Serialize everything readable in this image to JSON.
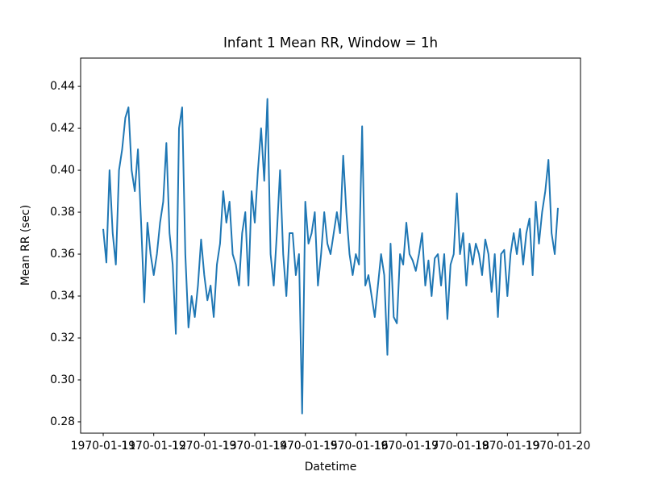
{
  "chart_data": {
    "type": "line",
    "title": "Infant 1 Mean RR, Window = 1h",
    "xlabel": "Datetime",
    "ylabel": "Mean RR (sec)",
    "x": [
      "1970-01-11 00:00",
      "1970-01-11 01:30",
      "1970-01-11 03:00",
      "1970-01-11 04:30",
      "1970-01-11 06:00",
      "1970-01-11 07:30",
      "1970-01-11 09:00",
      "1970-01-11 10:30",
      "1970-01-11 12:00",
      "1970-01-11 13:30",
      "1970-01-11 15:00",
      "1970-01-11 16:30",
      "1970-01-11 18:00",
      "1970-01-11 19:30",
      "1970-01-11 21:00",
      "1970-01-11 22:30",
      "1970-01-12 00:00",
      "1970-01-12 01:30",
      "1970-01-12 03:00",
      "1970-01-12 04:30",
      "1970-01-12 06:00",
      "1970-01-12 07:30",
      "1970-01-12 09:00",
      "1970-01-12 10:30",
      "1970-01-12 12:00",
      "1970-01-12 13:30",
      "1970-01-12 15:00",
      "1970-01-12 16:30",
      "1970-01-12 18:00",
      "1970-01-12 19:30",
      "1970-01-12 21:00",
      "1970-01-12 22:30",
      "1970-01-13 00:00",
      "1970-01-13 01:30",
      "1970-01-13 03:00",
      "1970-01-13 04:30",
      "1970-01-13 06:00",
      "1970-01-13 07:30",
      "1970-01-13 09:00",
      "1970-01-13 10:30",
      "1970-01-13 12:00",
      "1970-01-13 13:30",
      "1970-01-13 15:00",
      "1970-01-13 16:30",
      "1970-01-13 18:00",
      "1970-01-13 19:30",
      "1970-01-13 21:00",
      "1970-01-13 22:30",
      "1970-01-14 00:00",
      "1970-01-14 01:30",
      "1970-01-14 03:00",
      "1970-01-14 04:30",
      "1970-01-14 06:00",
      "1970-01-14 07:30",
      "1970-01-14 09:00",
      "1970-01-14 10:30",
      "1970-01-14 12:00",
      "1970-01-14 13:30",
      "1970-01-14 15:00",
      "1970-01-14 16:30",
      "1970-01-14 18:00",
      "1970-01-14 19:30",
      "1970-01-14 21:00",
      "1970-01-14 22:30",
      "1970-01-15 00:00",
      "1970-01-15 01:30",
      "1970-01-15 03:00",
      "1970-01-15 04:30",
      "1970-01-15 06:00",
      "1970-01-15 07:30",
      "1970-01-15 09:00",
      "1970-01-15 10:30",
      "1970-01-15 12:00",
      "1970-01-15 13:30",
      "1970-01-15 15:00",
      "1970-01-15 16:30",
      "1970-01-15 18:00",
      "1970-01-15 19:30",
      "1970-01-15 21:00",
      "1970-01-15 22:30",
      "1970-01-16 00:00",
      "1970-01-16 01:30",
      "1970-01-16 03:00",
      "1970-01-16 04:30",
      "1970-01-16 06:00",
      "1970-01-16 07:30",
      "1970-01-16 09:00",
      "1970-01-16 10:30",
      "1970-01-16 12:00",
      "1970-01-16 13:30",
      "1970-01-16 15:00",
      "1970-01-16 16:30",
      "1970-01-16 18:00",
      "1970-01-16 19:30",
      "1970-01-16 21:00",
      "1970-01-16 22:30",
      "1970-01-17 00:00",
      "1970-01-17 01:30",
      "1970-01-17 03:00",
      "1970-01-17 04:30",
      "1970-01-17 06:00",
      "1970-01-17 07:30",
      "1970-01-17 09:00",
      "1970-01-17 10:30",
      "1970-01-17 12:00",
      "1970-01-17 13:30",
      "1970-01-17 15:00",
      "1970-01-17 16:30",
      "1970-01-17 18:00",
      "1970-01-17 19:30",
      "1970-01-17 21:00",
      "1970-01-17 22:30",
      "1970-01-18 00:00",
      "1970-01-18 01:30",
      "1970-01-18 03:00",
      "1970-01-18 04:30",
      "1970-01-18 06:00",
      "1970-01-18 07:30",
      "1970-01-18 09:00",
      "1970-01-18 10:30",
      "1970-01-18 12:00",
      "1970-01-18 13:30",
      "1970-01-18 15:00",
      "1970-01-18 16:30",
      "1970-01-18 18:00",
      "1970-01-18 19:30",
      "1970-01-18 21:00",
      "1970-01-18 22:30",
      "1970-01-19 00:00",
      "1970-01-19 01:30",
      "1970-01-19 03:00",
      "1970-01-19 04:30",
      "1970-01-19 06:00",
      "1970-01-19 07:30",
      "1970-01-19 09:00",
      "1970-01-19 10:30",
      "1970-01-19 12:00",
      "1970-01-19 13:30",
      "1970-01-19 15:00",
      "1970-01-19 16:30",
      "1970-01-19 18:00",
      "1970-01-19 19:30",
      "1970-01-19 21:00",
      "1970-01-19 22:30",
      "1970-01-20 00:00"
    ],
    "values": [
      0.372,
      0.356,
      0.4,
      0.37,
      0.355,
      0.4,
      0.41,
      0.425,
      0.43,
      0.4,
      0.39,
      0.41,
      0.375,
      0.337,
      0.375,
      0.36,
      0.35,
      0.36,
      0.375,
      0.385,
      0.413,
      0.37,
      0.355,
      0.322,
      0.42,
      0.43,
      0.36,
      0.325,
      0.34,
      0.33,
      0.345,
      0.367,
      0.35,
      0.338,
      0.345,
      0.33,
      0.355,
      0.365,
      0.39,
      0.375,
      0.385,
      0.36,
      0.355,
      0.345,
      0.37,
      0.38,
      0.345,
      0.39,
      0.375,
      0.4,
      0.42,
      0.395,
      0.434,
      0.36,
      0.345,
      0.37,
      0.4,
      0.36,
      0.34,
      0.37,
      0.37,
      0.35,
      0.36,
      0.284,
      0.385,
      0.365,
      0.37,
      0.38,
      0.345,
      0.36,
      0.38,
      0.365,
      0.36,
      0.37,
      0.38,
      0.37,
      0.407,
      0.38,
      0.36,
      0.35,
      0.36,
      0.355,
      0.421,
      0.345,
      0.35,
      0.34,
      0.33,
      0.345,
      0.36,
      0.35,
      0.312,
      0.365,
      0.33,
      0.327,
      0.36,
      0.355,
      0.375,
      0.36,
      0.357,
      0.352,
      0.36,
      0.37,
      0.345,
      0.357,
      0.34,
      0.358,
      0.36,
      0.345,
      0.36,
      0.329,
      0.355,
      0.36,
      0.389,
      0.36,
      0.37,
      0.345,
      0.365,
      0.355,
      0.365,
      0.36,
      0.35,
      0.367,
      0.36,
      0.342,
      0.36,
      0.33,
      0.36,
      0.362,
      0.34,
      0.36,
      0.37,
      0.36,
      0.372,
      0.355,
      0.37,
      0.377,
      0.35,
      0.385,
      0.365,
      0.38,
      0.39,
      0.405,
      0.37,
      0.36,
      0.382
    ],
    "color": "#1f77b4",
    "xlim": [
      "1970-01-10 13:16",
      "1970-01-20 10:44"
    ],
    "xticks": [
      "1970-01-11",
      "1970-01-12",
      "1970-01-13",
      "1970-01-14",
      "1970-01-15",
      "1970-01-16",
      "1970-01-17",
      "1970-01-18",
      "1970-01-19",
      "1970-01-20"
    ],
    "ylim": [
      0.2746,
      0.4535
    ],
    "yticks": [
      0.28,
      {
        "value": 0.3,
        "label": "0.30"
      },
      0.32,
      0.34,
      0.36,
      0.38,
      {
        "value": 0.4,
        "label": "0.40"
      },
      0.42,
      0.44
    ]
  }
}
